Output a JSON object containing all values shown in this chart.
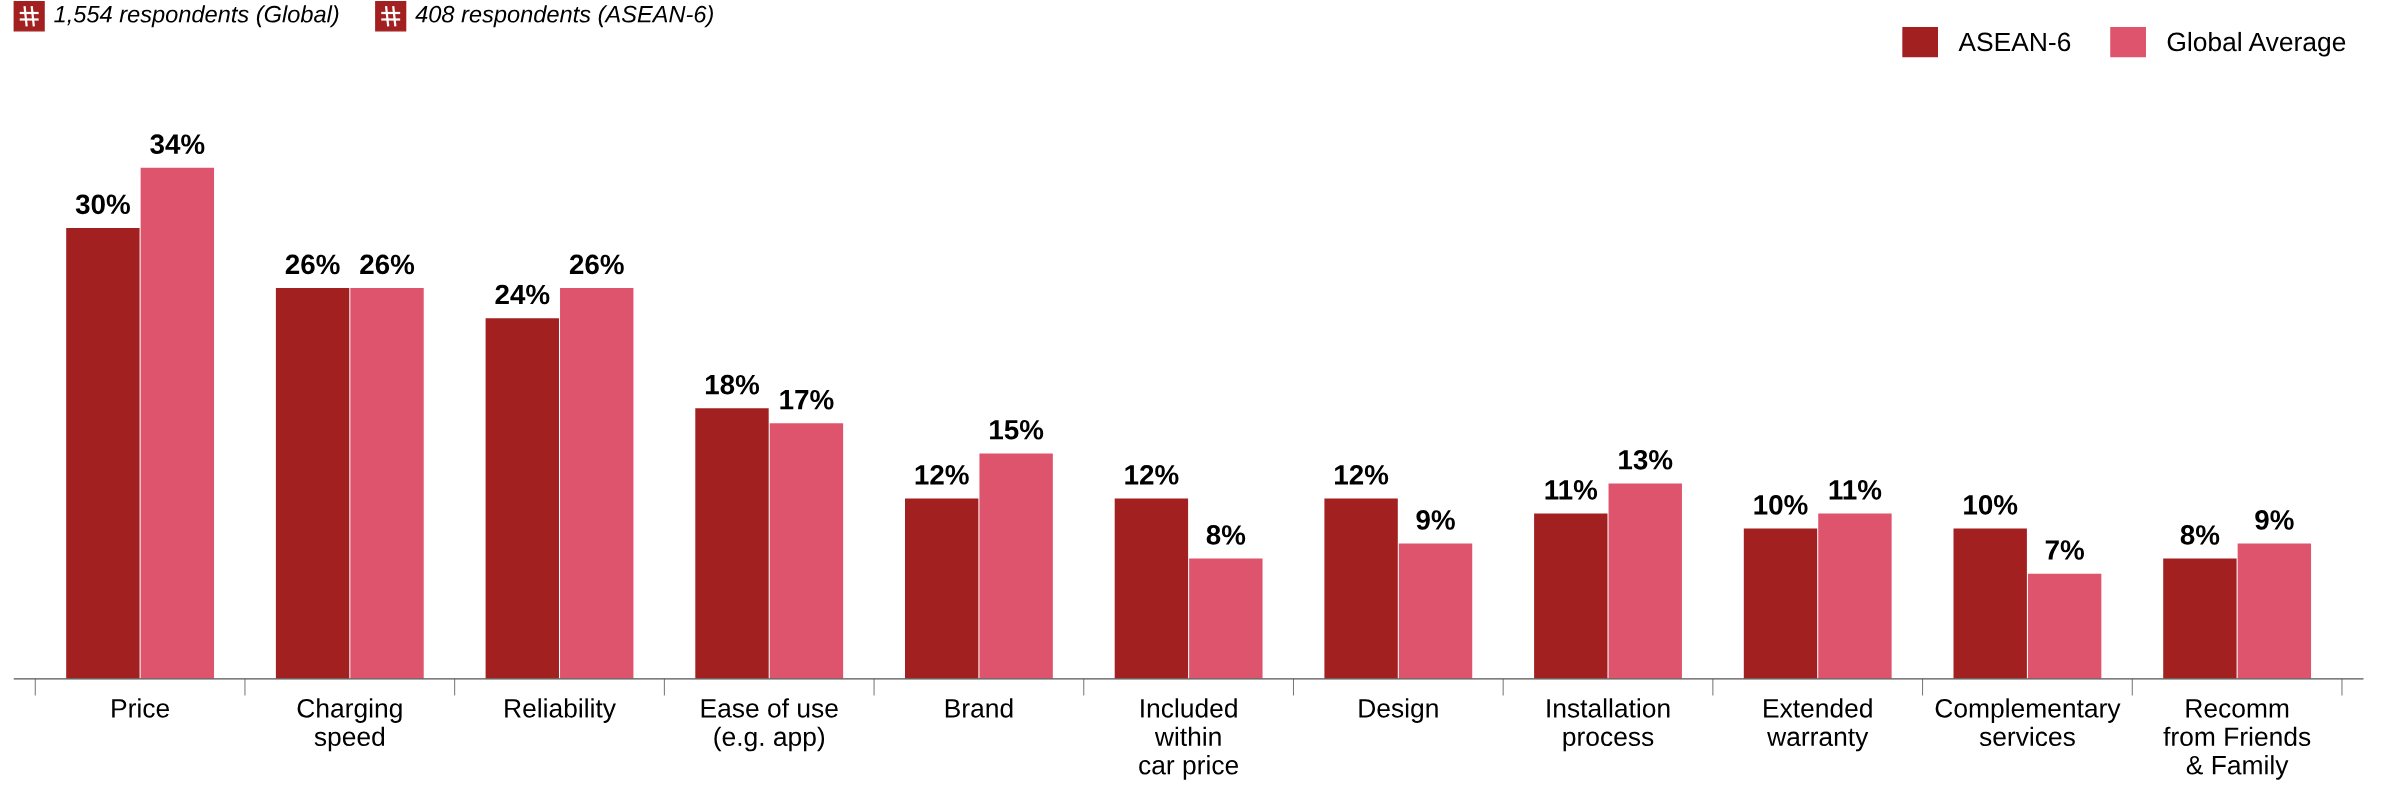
{
  "chart_data": {
    "type": "bar",
    "categories": [
      "Price",
      "Charging\nspeed",
      "Reliability",
      "Ease of use\n(e.g. app)",
      "Brand",
      "Included\nwithin\ncar price",
      "Design",
      "Installation\nprocess",
      "Extended\nwarranty",
      "Complementary\nservices",
      "Recomm\nfrom Friends\n& Family"
    ],
    "series": [
      {
        "name": "ASEAN-6",
        "color": "#a32020",
        "values": [
          30,
          26,
          24,
          18,
          12,
          12,
          12,
          11,
          10,
          10,
          8
        ],
        "value_labels": [
          "30%",
          "26%",
          "24%",
          "18%",
          "12%",
          "12%",
          "12%",
          "11%",
          "10%",
          "10%",
          "8%"
        ]
      },
      {
        "name": "Global Average",
        "color": "#dd546c",
        "values": [
          34,
          26,
          26,
          17,
          15,
          8,
          9,
          13,
          11,
          7,
          9
        ],
        "value_labels": [
          "34%",
          "26%",
          "26%",
          "17%",
          "15%",
          "8%",
          "9%",
          "13%",
          "11%",
          "7%",
          "9%"
        ]
      }
    ],
    "annotations": [
      "1,554 respondents (Global)",
      "408 respondents (ASEAN-6)"
    ],
    "legend": "top right",
    "grid": false
  }
}
